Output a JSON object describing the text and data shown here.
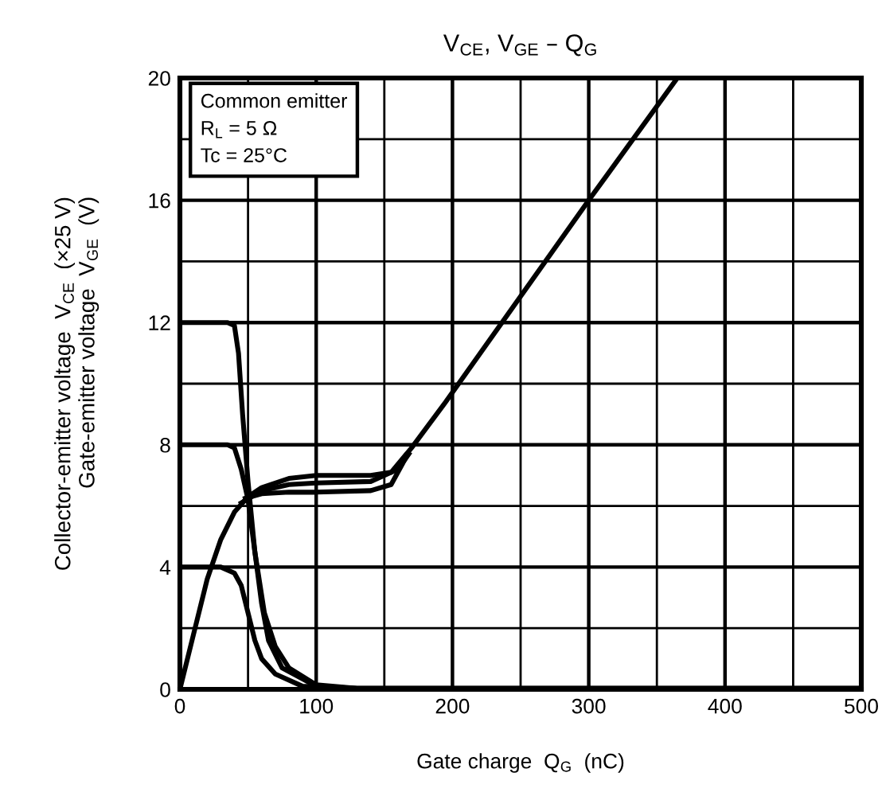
{
  "chart_data": {
    "type": "line",
    "title": "V$_{CE}$, V$_{GE}$ – Q$_{G}$",
    "xlabel": "Gate charge  Q$_{G}$  (nC)",
    "ylabel": "Collector-emitter voltage  V$_{CE}$  (×25 V)\nGate-emitter voltage  V$_{GE}$  (V)",
    "annotations": [
      "Common emitter\nR$_{L}$ = 5 Ω\nTc = 25°C"
    ],
    "xlim": [
      0,
      500
    ],
    "ylim": [
      0,
      20
    ],
    "xticks": [
      0,
      {
        "value": 50,
        "label": null
      },
      100,
      {
        "value": 150,
        "label": null
      },
      200,
      {
        "value": 250,
        "label": null
      },
      300,
      {
        "value": 350,
        "label": null
      },
      400,
      {
        "value": 450,
        "label": null
      },
      500
    ],
    "yticks": [
      0,
      {
        "value": 2,
        "label": null
      },
      4,
      {
        "value": 6,
        "label": null
      },
      8,
      {
        "value": 10,
        "label": null
      },
      12,
      {
        "value": 14,
        "label": null
      },
      16,
      {
        "value": 18,
        "label": null
      },
      20
    ],
    "grid": true,
    "legend": false,
    "marker": "none",
    "line_style": "solid",
    "series": [
      {
        "color": "#000000",
        "x": [
          0,
          35,
          40,
          43,
          46,
          50,
          55,
          62,
          70,
          80,
          100,
          130,
          500
        ],
        "values": [
          12,
          12,
          11.9,
          11,
          9,
          6.8,
          4.5,
          2.5,
          1.4,
          0.7,
          0.15,
          0.03,
          0.03
        ]
      },
      {
        "color": "#000000",
        "x": [
          0,
          35,
          40,
          45,
          50,
          55,
          60,
          65,
          75,
          100,
          130,
          500
        ],
        "values": [
          8,
          8,
          7.9,
          7.2,
          6.2,
          4.5,
          2.8,
          1.6,
          0.7,
          0.1,
          0.03,
          0.03
        ]
      },
      {
        "color": "#000000",
        "x": [
          0,
          30,
          40,
          45,
          50,
          55,
          60,
          70,
          90,
          120,
          500
        ],
        "values": [
          4,
          4,
          3.8,
          3.4,
          2.5,
          1.6,
          1.0,
          0.5,
          0.1,
          0.03,
          0.03
        ]
      },
      {
        "color": "#000000",
        "x": [
          0,
          10,
          20,
          30,
          40,
          50,
          60,
          80,
          100,
          140,
          155,
          170,
          195,
          300,
          365
        ],
        "values": [
          0,
          1.8,
          3.6,
          4.9,
          5.8,
          6.3,
          6.6,
          6.9,
          7.0,
          7.0,
          7.1,
          7.9,
          9.4,
          16,
          20
        ]
      },
      {
        "color": "#000000",
        "x": [
          45,
          60,
          80,
          100,
          140,
          160,
          168
        ],
        "values": [
          6.1,
          6.5,
          6.7,
          6.75,
          6.8,
          7.2,
          7.7
        ]
      },
      {
        "color": "#000000",
        "x": [
          48,
          60,
          80,
          100,
          140,
          155,
          166
        ],
        "values": [
          6.25,
          6.4,
          6.45,
          6.45,
          6.5,
          6.7,
          7.6
        ]
      }
    ]
  }
}
